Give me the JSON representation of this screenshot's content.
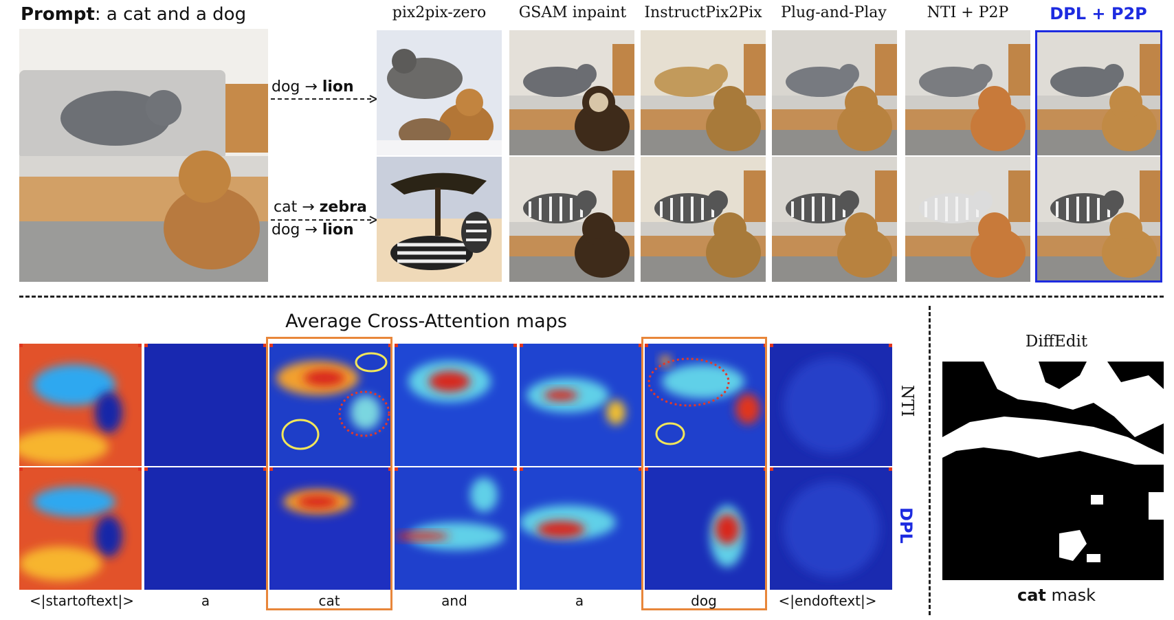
{
  "prompt": {
    "label": "Prompt",
    "text": ": a cat and a dog"
  },
  "edits": [
    {
      "src": "dog",
      "dst": "lion"
    },
    {
      "src": "cat",
      "dst": "zebra"
    },
    {
      "src": "dog",
      "dst": "lion"
    }
  ],
  "methods": [
    "pix2pix-zero",
    "GSAM inpaint",
    "InstructPix2Pix",
    "Plug-and-Play",
    "NTI + P2P",
    "DPL + P2P"
  ],
  "attention": {
    "title": "Average Cross-Attention maps",
    "rows": [
      "NTI",
      "DPL"
    ],
    "tokens": [
      "<|startoftext|>",
      "a",
      "cat",
      "and",
      "a",
      "dog",
      "<|endoftext|>"
    ]
  },
  "mask": {
    "title": "DiffEdit",
    "caption_bold": "cat",
    "caption_rest": " mask"
  },
  "colors": {
    "highlight": "#1d2be0",
    "orange": "#e8863a",
    "yellow_circle": "#f2e65a",
    "red_circle": "#e0392b"
  }
}
